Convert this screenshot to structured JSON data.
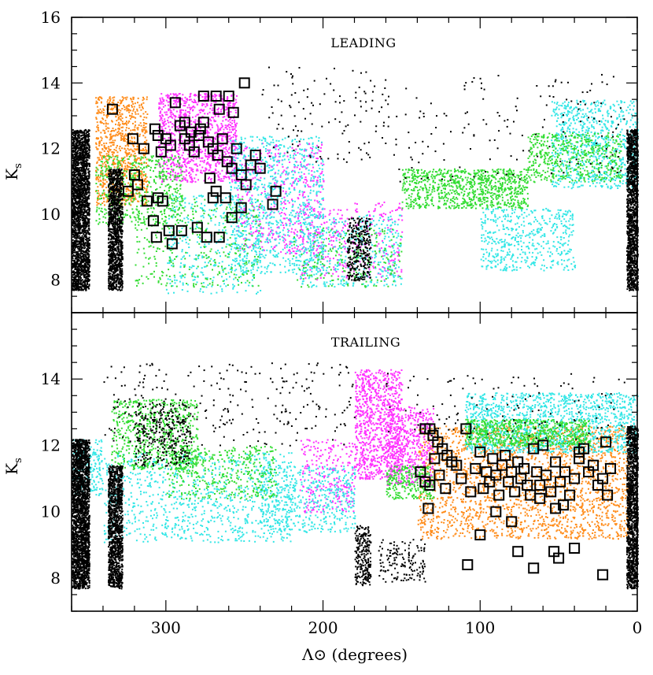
{
  "chart_data": [
    {
      "type": "scatter",
      "panel_label": "LEADING",
      "xlabel": "Λ⊙ (degrees)",
      "ylabel_main": "K",
      "ylabel_sub": "s",
      "xlim": [
        360,
        0
      ],
      "ylim": [
        7,
        16
      ],
      "x_ticks": [
        300,
        200,
        100,
        0
      ],
      "y_ticks": [
        8,
        10,
        12,
        14,
        16
      ],
      "colors": {
        "orange": "#ff8c1a",
        "magenta": "#ff33ff",
        "cyan": "#33e6e6",
        "green": "#33dd33",
        "black": "#000000",
        "markers": "#000000"
      },
      "series": [
        {
          "color": "orange",
          "clusters": [
            {
              "x": [
                312,
                345
              ],
              "y": [
                10.3,
                13.6
              ],
              "n": 900
            }
          ]
        },
        {
          "color": "magenta",
          "clusters": [
            {
              "x": [
                255,
                305
              ],
              "y": [
                11.0,
                13.7
              ],
              "n": 1100
            },
            {
              "x": [
                200,
                255
              ],
              "y": [
                8.8,
                12.2
              ],
              "n": 500
            },
            {
              "x": [
                150,
                215
              ],
              "y": [
                8.0,
                10.4
              ],
              "n": 300
            }
          ]
        },
        {
          "color": "cyan",
          "clusters": [
            {
              "x": [
                200,
                260
              ],
              "y": [
                8.2,
                12.4
              ],
              "n": 900
            },
            {
              "x": [
                240,
                300
              ],
              "y": [
                7.6,
                10.6
              ],
              "n": 400
            },
            {
              "x": [
                150,
                215
              ],
              "y": [
                7.8,
                10.0
              ],
              "n": 400
            },
            {
              "x": [
                40,
                100
              ],
              "y": [
                8.3,
                10.2
              ],
              "n": 500
            },
            {
              "x": [
                0,
                55
              ],
              "y": [
                10.8,
                13.5
              ],
              "n": 800
            }
          ]
        },
        {
          "color": "green",
          "clusters": [
            {
              "x": [
                290,
                345
              ],
              "y": [
                9.7,
                11.8
              ],
              "n": 500
            },
            {
              "x": [
                240,
                320
              ],
              "y": [
                7.8,
                10.5
              ],
              "n": 350
            },
            {
              "x": [
                70,
                150
              ],
              "y": [
                10.2,
                11.4
              ],
              "n": 900
            },
            {
              "x": [
                10,
                70
              ],
              "y": [
                11.0,
                12.5
              ],
              "n": 500
            },
            {
              "x": [
                150,
                220
              ],
              "y": [
                7.8,
                9.6
              ],
              "n": 200
            }
          ]
        },
        {
          "color": "black",
          "clusters": [
            {
              "x": [
                349,
                360
              ],
              "y": [
                7.7,
                12.6
              ],
              "n": 2200
            },
            {
              "x": [
                328,
                337
              ],
              "y": [
                7.7,
                11.4
              ],
              "n": 1200
            },
            {
              "x": [
                0,
                7
              ],
              "y": [
                7.7,
                12.6
              ],
              "n": 1300
            },
            {
              "x": [
                170,
                185
              ],
              "y": [
                8.0,
                9.9
              ],
              "n": 300
            },
            {
              "x": [
                160,
                240
              ],
              "y": [
                11.6,
                14.5
              ],
              "n": 120
            },
            {
              "x": [
                5,
                160
              ],
              "y": [
                11.0,
                14.3
              ],
              "n": 160
            }
          ]
        }
      ],
      "markers": [
        [
          334,
          13.2
        ],
        [
          321,
          12.3
        ],
        [
          320,
          11.2
        ],
        [
          314,
          12.0
        ],
        [
          307,
          12.6
        ],
        [
          305,
          12.4
        ],
        [
          303,
          11.9
        ],
        [
          300,
          12.3
        ],
        [
          297,
          12.1
        ],
        [
          294,
          13.4
        ],
        [
          291,
          12.7
        ],
        [
          288,
          12.3
        ],
        [
          285,
          12.1
        ],
        [
          282,
          11.9
        ],
        [
          279,
          12.4
        ],
        [
          276,
          12.8
        ],
        [
          273,
          12.2
        ],
        [
          270,
          12.0
        ],
        [
          267,
          11.8
        ],
        [
          264,
          12.3
        ],
        [
          261,
          11.6
        ],
        [
          258,
          11.4
        ],
        [
          255,
          12.0
        ],
        [
          252,
          11.2
        ],
        [
          249,
          10.9
        ],
        [
          246,
          11.5
        ],
        [
          243,
          11.8
        ],
        [
          240,
          11.4
        ],
        [
          276,
          13.6
        ],
        [
          268,
          13.6
        ],
        [
          260,
          13.6
        ],
        [
          250,
          14.0
        ],
        [
          257,
          13.1
        ],
        [
          266,
          13.2
        ],
        [
          288,
          12.8
        ],
        [
          284,
          12.5
        ],
        [
          278,
          12.6
        ],
        [
          272,
          11.1
        ],
        [
          268,
          10.7
        ],
        [
          262,
          10.5
        ],
        [
          258,
          9.9
        ],
        [
          280,
          9.6
        ],
        [
          274,
          9.3
        ],
        [
          266,
          9.3
        ],
        [
          290,
          9.5
        ],
        [
          298,
          9.5
        ],
        [
          306,
          9.3
        ],
        [
          308,
          9.8
        ],
        [
          305,
          10.5
        ],
        [
          302,
          10.4
        ],
        [
          296,
          9.1
        ],
        [
          318,
          10.9
        ],
        [
          324,
          10.7
        ],
        [
          312,
          10.4
        ],
        [
          232,
          10.3
        ],
        [
          230,
          10.7
        ],
        [
          252,
          10.2
        ],
        [
          270,
          10.5
        ]
      ]
    },
    {
      "type": "scatter",
      "panel_label": "TRAILING",
      "xlabel": "Λ⊙ (degrees)",
      "ylabel_main": "K",
      "ylabel_sub": "s",
      "xlim": [
        360,
        0
      ],
      "ylim": [
        7,
        16
      ],
      "x_ticks": [
        300,
        200,
        100,
        0
      ],
      "y_ticks": [
        8,
        10,
        12,
        14
      ],
      "colors": {
        "orange": "#ff8c1a",
        "magenta": "#ff33ff",
        "cyan": "#33e6e6",
        "green": "#33dd33",
        "black": "#000000",
        "markers": "#000000"
      },
      "series": [
        {
          "color": "orange",
          "clusters": [
            {
              "x": [
                5,
                140
              ],
              "y": [
                9.2,
                12.6
              ],
              "n": 2200
            }
          ]
        },
        {
          "color": "magenta",
          "clusters": [
            {
              "x": [
                150,
                180
              ],
              "y": [
                11.0,
                14.3
              ],
              "n": 900
            },
            {
              "x": [
                130,
                160
              ],
              "y": [
                10.8,
                13.2
              ],
              "n": 500
            },
            {
              "x": [
                180,
                215
              ],
              "y": [
                10.0,
                12.2
              ],
              "n": 250
            }
          ]
        },
        {
          "color": "cyan",
          "clusters": [
            {
              "x": [
                0,
                110
              ],
              "y": [
                11.8,
                13.6
              ],
              "n": 1400
            },
            {
              "x": [
                220,
                340
              ],
              "y": [
                9.1,
                11.8
              ],
              "n": 900
            },
            {
              "x": [
                180,
                240
              ],
              "y": [
                9.4,
                11.4
              ],
              "n": 500
            },
            {
              "x": [
                340,
                360
              ],
              "y": [
                10.5,
                12.2
              ],
              "n": 200
            }
          ]
        },
        {
          "color": "green",
          "clusters": [
            {
              "x": [
                280,
                335
              ],
              "y": [
                11.3,
                13.4
              ],
              "n": 700
            },
            {
              "x": [
                230,
                300
              ],
              "y": [
                10.4,
                12.0
              ],
              "n": 400
            },
            {
              "x": [
                30,
                110
              ],
              "y": [
                12.0,
                12.8
              ],
              "n": 700
            },
            {
              "x": [
                130,
                160
              ],
              "y": [
                10.4,
                11.4
              ],
              "n": 250
            }
          ]
        },
        {
          "color": "black",
          "clusters": [
            {
              "x": [
                349,
                360
              ],
              "y": [
                7.7,
                12.2
              ],
              "n": 2200
            },
            {
              "x": [
                328,
                337
              ],
              "y": [
                7.7,
                11.4
              ],
              "n": 1200
            },
            {
              "x": [
                0,
                7
              ],
              "y": [
                7.7,
                12.6
              ],
              "n": 1300
            },
            {
              "x": [
                170,
                180
              ],
              "y": [
                7.8,
                9.6
              ],
              "n": 250
            },
            {
              "x": [
                135,
                165
              ],
              "y": [
                7.9,
                9.2
              ],
              "n": 150
            },
            {
              "x": [
                180,
                340
              ],
              "y": [
                12.0,
                14.5
              ],
              "n": 260
            },
            {
              "x": [
                285,
                320
              ],
              "y": [
                11.4,
                13.3
              ],
              "n": 300
            },
            {
              "x": [
                5,
                160
              ],
              "y": [
                12.2,
                14.2
              ],
              "n": 120
            }
          ]
        }
      ],
      "markers": [
        [
          135,
          12.5
        ],
        [
          132,
          12.5
        ],
        [
          130,
          12.3
        ],
        [
          127,
          12.1
        ],
        [
          124,
          11.9
        ],
        [
          121,
          11.7
        ],
        [
          118,
          11.5
        ],
        [
          138,
          11.2
        ],
        [
          135,
          10.9
        ],
        [
          132,
          10.8
        ],
        [
          129,
          11.6
        ],
        [
          126,
          11.1
        ],
        [
          122,
          10.7
        ],
        [
          115,
          11.4
        ],
        [
          112,
          11.0
        ],
        [
          109,
          12.5
        ],
        [
          106,
          10.6
        ],
        [
          103,
          11.3
        ],
        [
          100,
          11.8
        ],
        [
          98,
          10.7
        ],
        [
          96,
          11.2
        ],
        [
          94,
          10.9
        ],
        [
          92,
          11.6
        ],
        [
          90,
          11.1
        ],
        [
          88,
          10.5
        ],
        [
          86,
          11.4
        ],
        [
          84,
          11.7
        ],
        [
          82,
          10.9
        ],
        [
          80,
          11.2
        ],
        [
          78,
          10.6
        ],
        [
          76,
          11.5
        ],
        [
          74,
          11.0
        ],
        [
          72,
          11.3
        ],
        [
          70,
          10.8
        ],
        [
          68,
          10.5
        ],
        [
          66,
          11.9
        ],
        [
          64,
          11.2
        ],
        [
          62,
          10.8
        ],
        [
          60,
          12.0
        ],
        [
          58,
          11.1
        ],
        [
          55,
          10.6
        ],
        [
          52,
          11.5
        ],
        [
          49,
          10.9
        ],
        [
          46,
          11.2
        ],
        [
          43,
          10.5
        ],
        [
          40,
          11.0
        ],
        [
          37,
          11.6
        ],
        [
          34,
          11.9
        ],
        [
          31,
          11.2
        ],
        [
          28,
          11.4
        ],
        [
          25,
          10.8
        ],
        [
          22,
          11.0
        ],
        [
          19,
          10.5
        ],
        [
          17,
          11.3
        ],
        [
          20,
          12.1
        ],
        [
          37,
          11.8
        ],
        [
          133,
          10.1
        ],
        [
          100,
          9.3
        ],
        [
          90,
          10.0
        ],
        [
          80,
          9.7
        ],
        [
          76,
          8.8
        ],
        [
          66,
          8.3
        ],
        [
          53,
          8.8
        ],
        [
          50,
          8.6
        ],
        [
          40,
          8.9
        ],
        [
          108,
          8.4
        ],
        [
          22,
          8.1
        ],
        [
          52,
          10.1
        ],
        [
          47,
          10.2
        ],
        [
          62,
          10.4
        ]
      ]
    }
  ]
}
